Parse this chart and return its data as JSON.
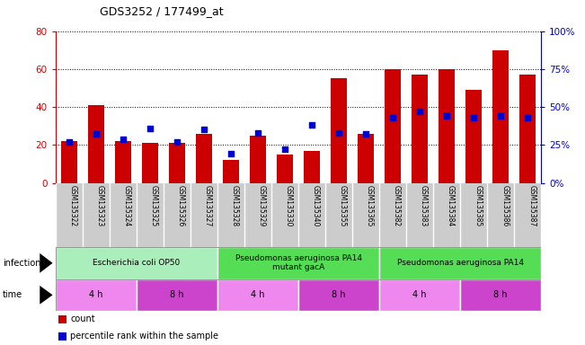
{
  "title": "GDS3252 / 177499_at",
  "samples": [
    "GSM135322",
    "GSM135323",
    "GSM135324",
    "GSM135325",
    "GSM135326",
    "GSM135327",
    "GSM135328",
    "GSM135329",
    "GSM135330",
    "GSM135340",
    "GSM135355",
    "GSM135365",
    "GSM135382",
    "GSM135383",
    "GSM135384",
    "GSM135385",
    "GSM135386",
    "GSM135387"
  ],
  "count_values": [
    22,
    41,
    22,
    21,
    21,
    26,
    12,
    25,
    15,
    17,
    55,
    26,
    60,
    57,
    60,
    49,
    70,
    57
  ],
  "percentile_values": [
    27,
    32,
    29,
    36,
    27,
    35,
    19,
    33,
    22,
    38,
    33,
    32,
    43,
    47,
    44,
    43,
    44,
    43
  ],
  "ylim_left": [
    0,
    80
  ],
  "ylim_right": [
    0,
    100
  ],
  "yticks_left": [
    0,
    20,
    40,
    60,
    80
  ],
  "yticks_right": [
    0,
    25,
    50,
    75,
    100
  ],
  "bar_color": "#cc0000",
  "dot_color": "#0000cc",
  "grid_color": "#000000",
  "infection_groups": [
    {
      "label": "Escherichia coli OP50",
      "start": 0,
      "end": 6,
      "color": "#aaeebb"
    },
    {
      "label": "Pseudomonas aeruginosa PA14\nmutant gacA",
      "start": 6,
      "end": 12,
      "color": "#55dd55"
    },
    {
      "label": "Pseudomonas aeruginosa PA14",
      "start": 12,
      "end": 18,
      "color": "#55dd55"
    }
  ],
  "time_groups": [
    {
      "label": "4 h",
      "start": 0,
      "end": 3,
      "color": "#ee88ee"
    },
    {
      "label": "8 h",
      "start": 3,
      "end": 6,
      "color": "#cc44cc"
    },
    {
      "label": "4 h",
      "start": 6,
      "end": 9,
      "color": "#ee88ee"
    },
    {
      "label": "8 h",
      "start": 9,
      "end": 12,
      "color": "#cc44cc"
    },
    {
      "label": "4 h",
      "start": 12,
      "end": 15,
      "color": "#ee88ee"
    },
    {
      "label": "8 h",
      "start": 15,
      "end": 18,
      "color": "#cc44cc"
    }
  ],
  "infection_label": "infection",
  "time_label": "time",
  "bg_color": "#ffffff",
  "xlabels_bg": "#cccccc",
  "left_axis_color": "#cc0000",
  "right_axis_color": "#0000cc"
}
